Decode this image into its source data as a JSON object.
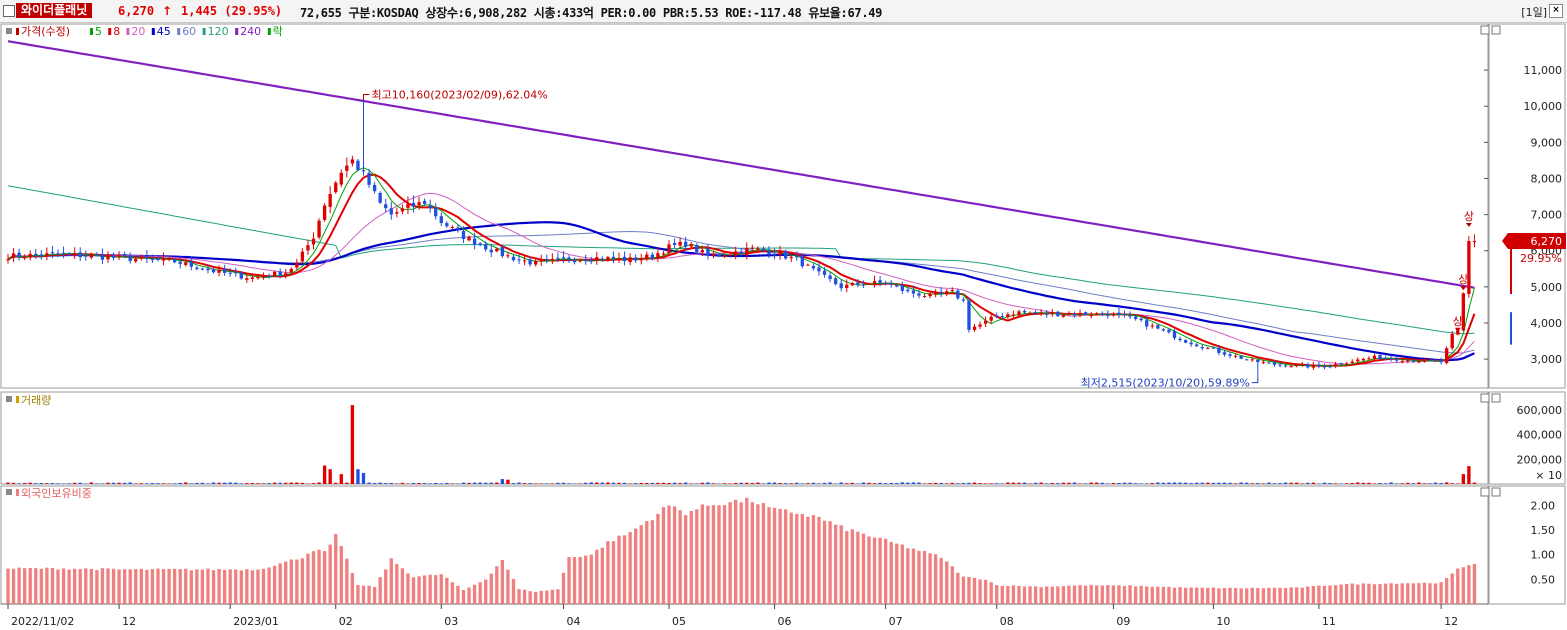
{
  "header": {
    "stock_name": "와이더플래닛",
    "price": "6,270",
    "arrow": "↑",
    "change": "1,445 (29.95%)",
    "info": "72,655  구분:KOSDAQ 상장수:6,908,282 시총:433억  PER:0.00 PBR:5.53 ROE:-117.48 유보율:67.49",
    "period": "[1일]",
    "close": "×"
  },
  "price_panel": {
    "legend": [
      {
        "label": "가격(수정)",
        "color": "#c00000"
      },
      {
        "label": "5",
        "color": "#00a000"
      },
      {
        "label": "8",
        "color": "#e00000"
      },
      {
        "label": "20",
        "color": "#d060c0"
      },
      {
        "label": "45",
        "color": "#0000c8"
      },
      {
        "label": "60",
        "color": "#7080c8"
      },
      {
        "label": "120",
        "color": "#20a080"
      },
      {
        "label": "240",
        "color": "#8020c0"
      },
      {
        "label": "락",
        "color": "#00a000"
      }
    ],
    "high_label": "최고10,160(2023/02/09),62.04%",
    "low_label": "최저2,515(2023/10/20),59.89%",
    "last_price": "6,270",
    "last_change": "29.95%",
    "upper_limit_marks": [
      "상",
      "상",
      "상"
    ]
  },
  "volume_panel": {
    "legend": "거래량",
    "unit": "× 10"
  },
  "foreign_panel": {
    "legend": "외국인보유비중"
  },
  "colors": {
    "up": "#e00000",
    "down": "#2050e0",
    "ma5": "#00a000",
    "ma8": "#e00000",
    "ma20": "#d060c0",
    "ma45": "#0000c8",
    "ma60": "#7080c8",
    "ma120": "#20a080",
    "ma240": "#8020c0",
    "foreign": "#f08080"
  },
  "chart_data": {
    "type": "candlestick",
    "price_axis": {
      "min": 2200,
      "max": 12000,
      "ticks": [
        3000,
        4000,
        5000,
        6000,
        7000,
        8000,
        9000,
        10000,
        11000
      ],
      "tick_labels": [
        "3,000",
        "4,000",
        "5,000",
        "6,000",
        "7,000",
        "8,000",
        "9,000",
        "10,000",
        "11,000"
      ]
    },
    "volume_axis": {
      "min": 0,
      "max": 730000,
      "ticks": [
        200000,
        400000,
        600000
      ],
      "tick_labels": [
        "200,000",
        "400,000",
        "600,000"
      ]
    },
    "foreign_axis": {
      "min": 0,
      "max": 2.35,
      "ticks": [
        0.5,
        1.0,
        1.5,
        2.0
      ],
      "tick_labels": [
        "0.50",
        "1.00",
        "1.50",
        "2.00"
      ]
    },
    "x_labels": [
      {
        "day": 0,
        "label": "2022/11/02"
      },
      {
        "day": 20,
        "label": "12"
      },
      {
        "day": 40,
        "label": "2023/01"
      },
      {
        "day": 59,
        "label": "02"
      },
      {
        "day": 78,
        "label": "03"
      },
      {
        "day": 100,
        "label": "04"
      },
      {
        "day": 119,
        "label": "05"
      },
      {
        "day": 138,
        "label": "06"
      },
      {
        "day": 158,
        "label": "07"
      },
      {
        "day": 178,
        "label": "08"
      },
      {
        "day": 199,
        "label": "09"
      },
      {
        "day": 217,
        "label": "10"
      },
      {
        "day": 236,
        "label": "11"
      },
      {
        "day": 258,
        "label": "12"
      }
    ],
    "close_anchors": [
      [
        0,
        5850
      ],
      [
        10,
        5900
      ],
      [
        20,
        5800
      ],
      [
        30,
        5700
      ],
      [
        38,
        5400
      ],
      [
        44,
        5250
      ],
      [
        50,
        5400
      ],
      [
        52,
        5650
      ],
      [
        55,
        6400
      ],
      [
        57,
        7300
      ],
      [
        60,
        8200
      ],
      [
        62,
        8500
      ],
      [
        64,
        8100
      ],
      [
        67,
        7300
      ],
      [
        69,
        7000
      ],
      [
        72,
        7200
      ],
      [
        75,
        7350
      ],
      [
        78,
        6800
      ],
      [
        82,
        6400
      ],
      [
        86,
        6100
      ],
      [
        89,
        5900
      ],
      [
        92,
        5750
      ],
      [
        95,
        5650
      ],
      [
        100,
        5750
      ],
      [
        106,
        5800
      ],
      [
        112,
        5750
      ],
      [
        116,
        5850
      ],
      [
        119,
        6100
      ],
      [
        122,
        6200
      ],
      [
        126,
        5850
      ],
      [
        130,
        5950
      ],
      [
        134,
        6050
      ],
      [
        138,
        5950
      ],
      [
        142,
        5750
      ],
      [
        146,
        5350
      ],
      [
        150,
        5000
      ],
      [
        154,
        5100
      ],
      [
        158,
        5100
      ],
      [
        162,
        4850
      ],
      [
        166,
        4750
      ],
      [
        170,
        4850
      ],
      [
        172,
        4600
      ],
      [
        173,
        3850
      ],
      [
        175,
        3950
      ],
      [
        178,
        4200
      ],
      [
        182,
        4300
      ],
      [
        186,
        4250
      ],
      [
        190,
        4250
      ],
      [
        194,
        4250
      ],
      [
        198,
        4250
      ],
      [
        202,
        4150
      ],
      [
        206,
        3900
      ],
      [
        212,
        3500
      ],
      [
        218,
        3200
      ],
      [
        224,
        2950
      ],
      [
        228,
        2850
      ],
      [
        234,
        2800
      ],
      [
        238,
        2820
      ],
      [
        242,
        2950
      ],
      [
        246,
        3050
      ],
      [
        250,
        3000
      ],
      [
        255,
        2950
      ],
      [
        258,
        2920
      ],
      [
        259,
        3300
      ],
      [
        260,
        3700
      ],
      [
        261,
        3800
      ],
      [
        262,
        4820
      ],
      [
        263,
        6270
      ]
    ],
    "high_point": {
      "day": 64,
      "value": 10160,
      "date": "2023/02/09",
      "pct": 62.04
    },
    "low_point": {
      "day": 225,
      "value": 2515,
      "date": "2023/10/20",
      "pct": 59.89
    },
    "volume_spikes": [
      [
        57,
        150000
      ],
      [
        62,
        640000
      ],
      [
        63,
        120000
      ],
      [
        64,
        90000
      ],
      [
        58,
        120000
      ],
      [
        60,
        80000
      ],
      [
        89,
        40000
      ],
      [
        90,
        35000
      ],
      [
        262,
        80000
      ],
      [
        263,
        145000
      ]
    ],
    "foreign_anchors": [
      [
        0,
        0.72
      ],
      [
        10,
        0.72
      ],
      [
        20,
        0.7
      ],
      [
        30,
        0.7
      ],
      [
        45,
        0.7
      ],
      [
        50,
        0.85
      ],
      [
        53,
        0.95
      ],
      [
        55,
        1.1
      ],
      [
        57,
        1.05
      ],
      [
        58,
        1.2
      ],
      [
        59,
        1.38
      ],
      [
        61,
        0.9
      ],
      [
        63,
        0.38
      ],
      [
        66,
        0.35
      ],
      [
        69,
        0.9
      ],
      [
        73,
        0.55
      ],
      [
        78,
        0.6
      ],
      [
        82,
        0.28
      ],
      [
        86,
        0.5
      ],
      [
        89,
        0.9
      ],
      [
        92,
        0.3
      ],
      [
        95,
        0.25
      ],
      [
        99,
        0.3
      ],
      [
        101,
        0.95
      ],
      [
        105,
        1.0
      ],
      [
        108,
        1.25
      ],
      [
        112,
        1.45
      ],
      [
        116,
        1.75
      ],
      [
        119,
        2.0
      ],
      [
        122,
        1.85
      ],
      [
        126,
        2.0
      ],
      [
        130,
        2.07
      ],
      [
        134,
        2.1
      ],
      [
        138,
        1.9
      ],
      [
        142,
        1.85
      ],
      [
        146,
        1.75
      ],
      [
        150,
        1.55
      ],
      [
        156,
        1.35
      ],
      [
        162,
        1.15
      ],
      [
        168,
        0.95
      ],
      [
        172,
        0.55
      ],
      [
        176,
        0.5
      ],
      [
        178,
        0.38
      ],
      [
        186,
        0.35
      ],
      [
        194,
        0.38
      ],
      [
        202,
        0.37
      ],
      [
        212,
        0.33
      ],
      [
        222,
        0.32
      ],
      [
        232,
        0.33
      ],
      [
        240,
        0.4
      ],
      [
        250,
        0.42
      ],
      [
        258,
        0.43
      ],
      [
        261,
        0.7
      ],
      [
        263,
        0.8
      ],
      [
        264,
        0.82
      ]
    ],
    "days": 265
  }
}
